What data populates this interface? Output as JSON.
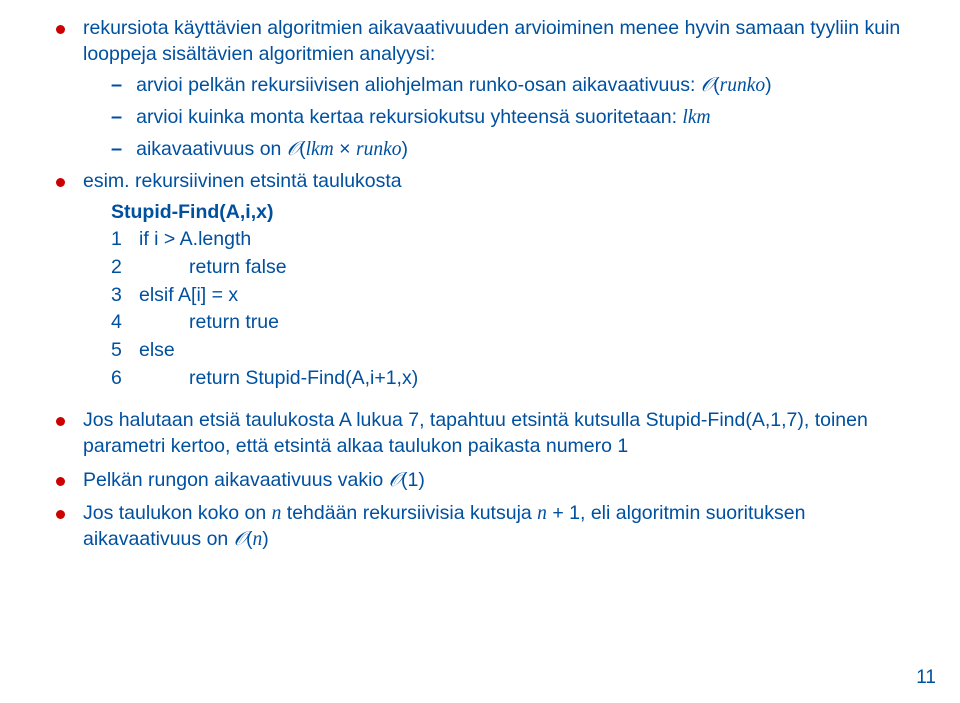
{
  "b1": {
    "text": "rekursiota käyttävien algoritmien aikavaativuuden arvioiminen menee hyvin samaan tyyliin kuin looppeja sisältävien algoritmien analyysi:",
    "sub1_pre": "arvioi pelkän rekursiivisen aliohjelman runko-osan aikavaativuus: ",
    "sub1_math": "𝒪(runko)",
    "sub2_pre": "arvioi kuinka monta kertaa rekursiokutsu yhteensä suoritetaan: ",
    "sub2_math": "lkm",
    "sub3_pre": "aikavaativuus on ",
    "sub3_math": "𝒪(lkm × runko)"
  },
  "b2": {
    "text": "esim. rekursiivinen etsintä taulukosta",
    "code_title": "Stupid-Find(A,i,x)",
    "lines": [
      {
        "n": "1",
        "indent": 0,
        "code": "if i > A.length"
      },
      {
        "n": "2",
        "indent": 1,
        "code": "return false"
      },
      {
        "n": "3",
        "indent": 0,
        "code": "elsif A[i] = x"
      },
      {
        "n": "4",
        "indent": 1,
        "code": "return true"
      },
      {
        "n": "5",
        "indent": 0,
        "code": "else"
      },
      {
        "n": "6",
        "indent": 1,
        "code": "return Stupid-Find(A,i+1,x)"
      }
    ]
  },
  "b3": "Jos halutaan etsiä taulukosta A lukua 7, tapahtuu etsintä kutsulla Stupid-Find(A,1,7), toinen parametri kertoo, että etsintä alkaa taulukon paikasta numero 1",
  "b4_pre": "Pelkän rungon aikavaativuus vakio ",
  "b4_math": "𝒪(1)",
  "b5_p1": "Jos taulukon koko on ",
  "b5_n1": "n",
  "b5_p2": " tehdään rekursiivisia kutsuja ",
  "b5_n2": "n + 1",
  "b5_p3": ", eli algoritmin suorituksen aikavaativuus on ",
  "b5_math": "𝒪(n)",
  "page_number": "11"
}
